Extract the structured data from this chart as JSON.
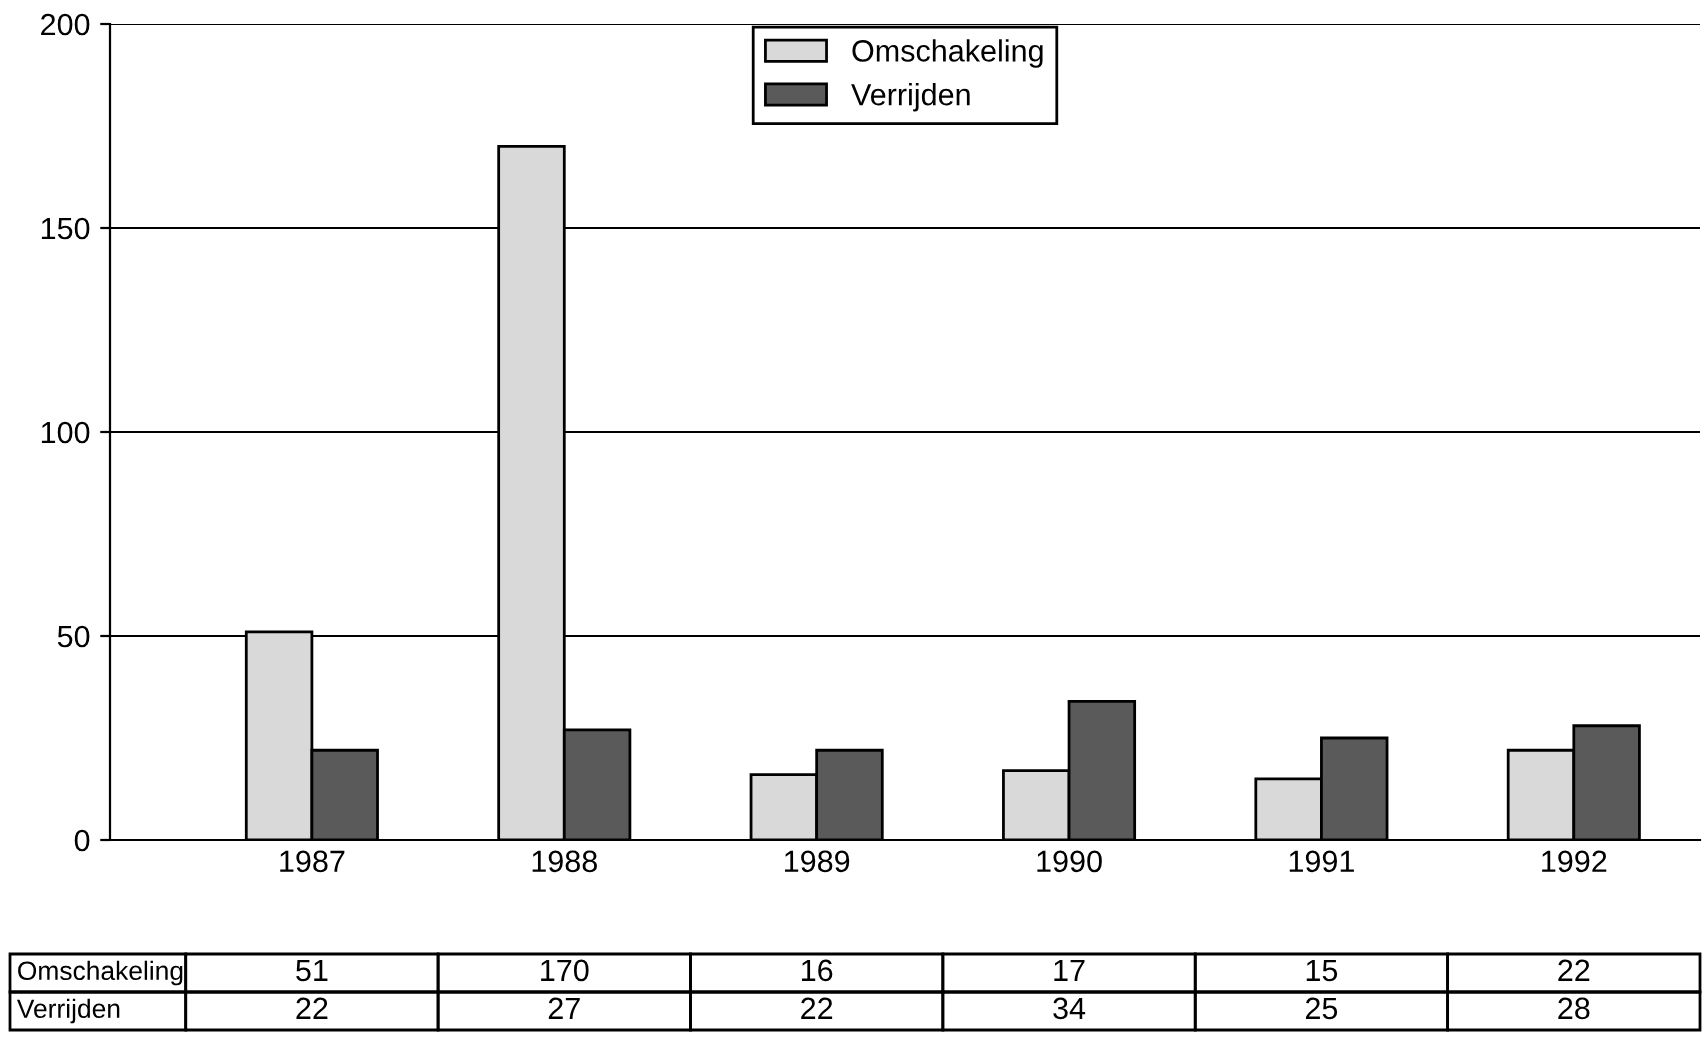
{
  "chart_data": {
    "type": "bar",
    "categories": [
      "1987",
      "1988",
      "1989",
      "1990",
      "1991",
      "1992"
    ],
    "series": [
      {
        "name": "Omschakeling",
        "color": "#d9d9d9",
        "values": [
          51,
          170,
          16,
          17,
          15,
          22
        ]
      },
      {
        "name": "Verrijden",
        "color": "#5a5a5a",
        "values": [
          22,
          27,
          22,
          34,
          25,
          28
        ]
      }
    ],
    "ylim": [
      0,
      200
    ],
    "yticks": [
      0,
      50,
      100,
      150,
      200
    ],
    "grid": "y",
    "legend": "top",
    "data_labels": true
  }
}
